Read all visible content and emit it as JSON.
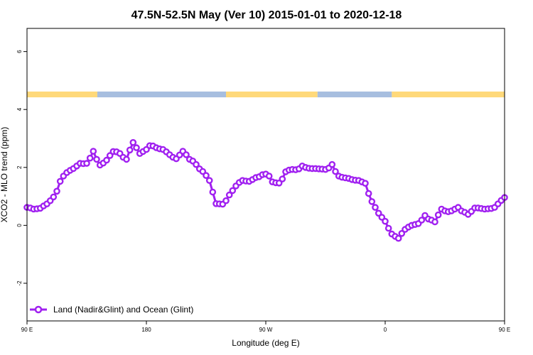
{
  "chart_data": {
    "type": "line",
    "title": "47.5N-52.5N May (Ver 10)   2015-01-01 to 2020-12-18",
    "xlabel": "Longitude (deg E)",
    "ylabel": "XCO2 - MLO trend (ppm)",
    "xlim": [
      90,
      450
    ],
    "ylim": [
      -3.3,
      6.8
    ],
    "x_ticks": [
      {
        "value": 90,
        "label": "90 E"
      },
      {
        "value": 180,
        "label": "180"
      },
      {
        "value": 270,
        "label": "90 W"
      },
      {
        "value": 360,
        "label": "0"
      },
      {
        "value": 450,
        "label": "90 E"
      },
      {
        "value": 540,
        "label": "180"
      }
    ],
    "y_ticks": [
      {
        "value": -2,
        "label": "-2"
      },
      {
        "value": 0,
        "label": "0"
      },
      {
        "value": 2,
        "label": "2"
      },
      {
        "value": 4,
        "label": "4"
      },
      {
        "value": 6,
        "label": "6"
      }
    ],
    "surface_band": {
      "y_range": [
        4.42,
        4.62
      ],
      "land_color": "#ffd97a",
      "ocean_color": "#a7bedf",
      "segments": [
        {
          "from": 90,
          "to": 143,
          "type": "land"
        },
        {
          "from": 143,
          "to": 240,
          "type": "ocean"
        },
        {
          "from": 240,
          "to": 309,
          "type": "land"
        },
        {
          "from": 309,
          "to": 365,
          "type": "ocean"
        },
        {
          "from": 365,
          "to": 499,
          "type": "land"
        },
        {
          "from": 499,
          "to": 540,
          "type": "ocean"
        }
      ]
    },
    "series": [
      {
        "name": "Land (Nadir&Glint) and Ocean (Glint)",
        "color": "#a020f0",
        "x": [
          90,
          92.5,
          95,
          97.5,
          100,
          102.5,
          105,
          107.5,
          110,
          112.5,
          115,
          117.5,
          120,
          122.5,
          125,
          127.5,
          130,
          132.5,
          135,
          137.5,
          140,
          142.5,
          145,
          147.5,
          150,
          152.5,
          155,
          157.5,
          160,
          162.5,
          165,
          167.5,
          170,
          172.5,
          175,
          177.5,
          180,
          182.5,
          185,
          187.5,
          190,
          192.5,
          195,
          197.5,
          200,
          202.5,
          205,
          207.5,
          210,
          212.5,
          215,
          217.5,
          220,
          222.5,
          225,
          227.5,
          230,
          232.5,
          235,
          237.5,
          240,
          242.5,
          245,
          247.5,
          250,
          252.5,
          255,
          257.5,
          260,
          262.5,
          265,
          267.5,
          270,
          272.5,
          275,
          277.5,
          280,
          282.5,
          285,
          287.5,
          290,
          292.5,
          295,
          297.5,
          300,
          302.5,
          305,
          307.5,
          310,
          312.5,
          315,
          317.5,
          320,
          322.5,
          325,
          327.5,
          330,
          332.5,
          335,
          337.5,
          340,
          342.5,
          345,
          347.5,
          350,
          352.5,
          355,
          357.5,
          360,
          362.5,
          365,
          367.5,
          370,
          372.5,
          375,
          377.5,
          380,
          382.5,
          385,
          387.5,
          390,
          392.5,
          395,
          397.5,
          400,
          402.5,
          405,
          407.5,
          410,
          412.5,
          415,
          417.5,
          420,
          422.5,
          425,
          427.5,
          430,
          432.5,
          435,
          437.5,
          440,
          442.5,
          445,
          447.5,
          450
        ],
        "y": [
          0.62,
          0.6,
          0.56,
          0.57,
          0.59,
          0.67,
          0.74,
          0.85,
          0.98,
          1.18,
          1.52,
          1.7,
          1.82,
          1.9,
          1.96,
          2.05,
          2.14,
          2.13,
          2.14,
          2.32,
          2.56,
          2.28,
          2.08,
          2.15,
          2.25,
          2.41,
          2.55,
          2.54,
          2.48,
          2.35,
          2.28,
          2.6,
          2.86,
          2.68,
          2.48,
          2.55,
          2.62,
          2.75,
          2.74,
          2.68,
          2.64,
          2.62,
          2.54,
          2.44,
          2.35,
          2.3,
          2.43,
          2.56,
          2.44,
          2.28,
          2.22,
          2.1,
          1.95,
          1.86,
          1.72,
          1.55,
          1.15,
          0.75,
          0.74,
          0.73,
          0.85,
          1.05,
          1.2,
          1.36,
          1.48,
          1.55,
          1.53,
          1.52,
          1.58,
          1.65,
          1.68,
          1.75,
          1.77,
          1.7,
          1.5,
          1.47,
          1.46,
          1.6,
          1.85,
          1.91,
          1.93,
          1.92,
          1.95,
          2.05,
          2.0,
          1.97,
          1.96,
          1.96,
          1.95,
          1.94,
          1.93,
          1.98,
          2.1,
          1.86,
          1.7,
          1.66,
          1.64,
          1.62,
          1.58,
          1.56,
          1.55,
          1.5,
          1.45,
          1.1,
          0.82,
          0.62,
          0.42,
          0.28,
          0.14,
          -0.1,
          -0.3,
          -0.38,
          -0.45,
          -0.28,
          -0.14,
          -0.06,
          0.0,
          0.03,
          0.06,
          0.18,
          0.34,
          0.22,
          0.18,
          0.12,
          0.36,
          0.56,
          0.5,
          0.47,
          0.5,
          0.56,
          0.62,
          0.5,
          0.45,
          0.38,
          0.48,
          0.6,
          0.6,
          0.58,
          0.56,
          0.57,
          0.58,
          0.62,
          0.74,
          0.86,
          0.96
        ]
      }
    ],
    "legend_position": "bottom-left",
    "grid": false
  }
}
